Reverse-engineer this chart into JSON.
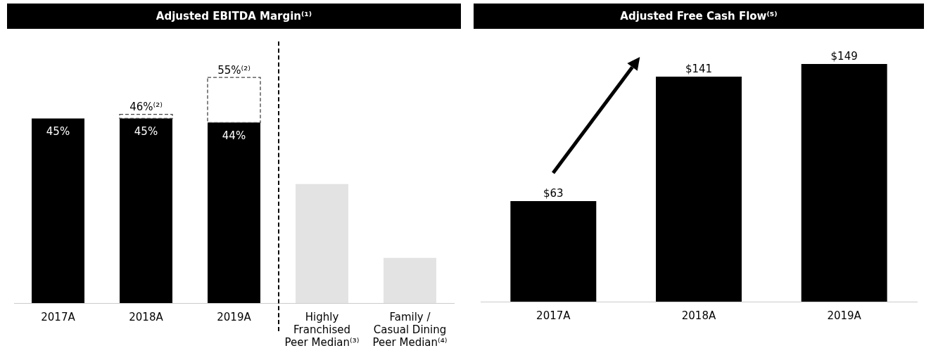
{
  "chart_data": [
    {
      "type": "bar",
      "title": "Adjusted EBITDA Margin⁽¹⁾",
      "categories": [
        "2017A",
        "2018A",
        "2019A",
        "Highly\nFranchised\nPeer Median⁽³⁾",
        "Family /\nCasual Dining\nPeer Median⁽⁴⁾"
      ],
      "series": [
        {
          "colors": [
            "#000000",
            "#000000",
            "#000000",
            "#e3e3e3",
            "#e3e3e3"
          ],
          "values": [
            45,
            45,
            44,
            29,
            11
          ],
          "value_labels": [
            "45%",
            "45%",
            "44%",
            null,
            null
          ]
        },
        {
          "color": "#444444",
          "line_style": "dashed",
          "values": [
            null,
            1,
            11,
            null,
            null
          ]
        }
      ],
      "totals": [
        null,
        "46%⁽²⁾",
        "55%⁽²⁾",
        null,
        null
      ],
      "stacked": true,
      "grid": false,
      "legend": false
    },
    {
      "type": "bar",
      "title": "Adjusted Free Cash Flow⁽⁵⁾",
      "categories": [
        "2017A",
        "2018A",
        "2019A"
      ],
      "series": [
        {
          "color": "#000000",
          "values": [
            63,
            141,
            149
          ],
          "value_labels": [
            "$63",
            "$141",
            "$149"
          ]
        }
      ],
      "grid": false,
      "legend": false
    }
  ]
}
